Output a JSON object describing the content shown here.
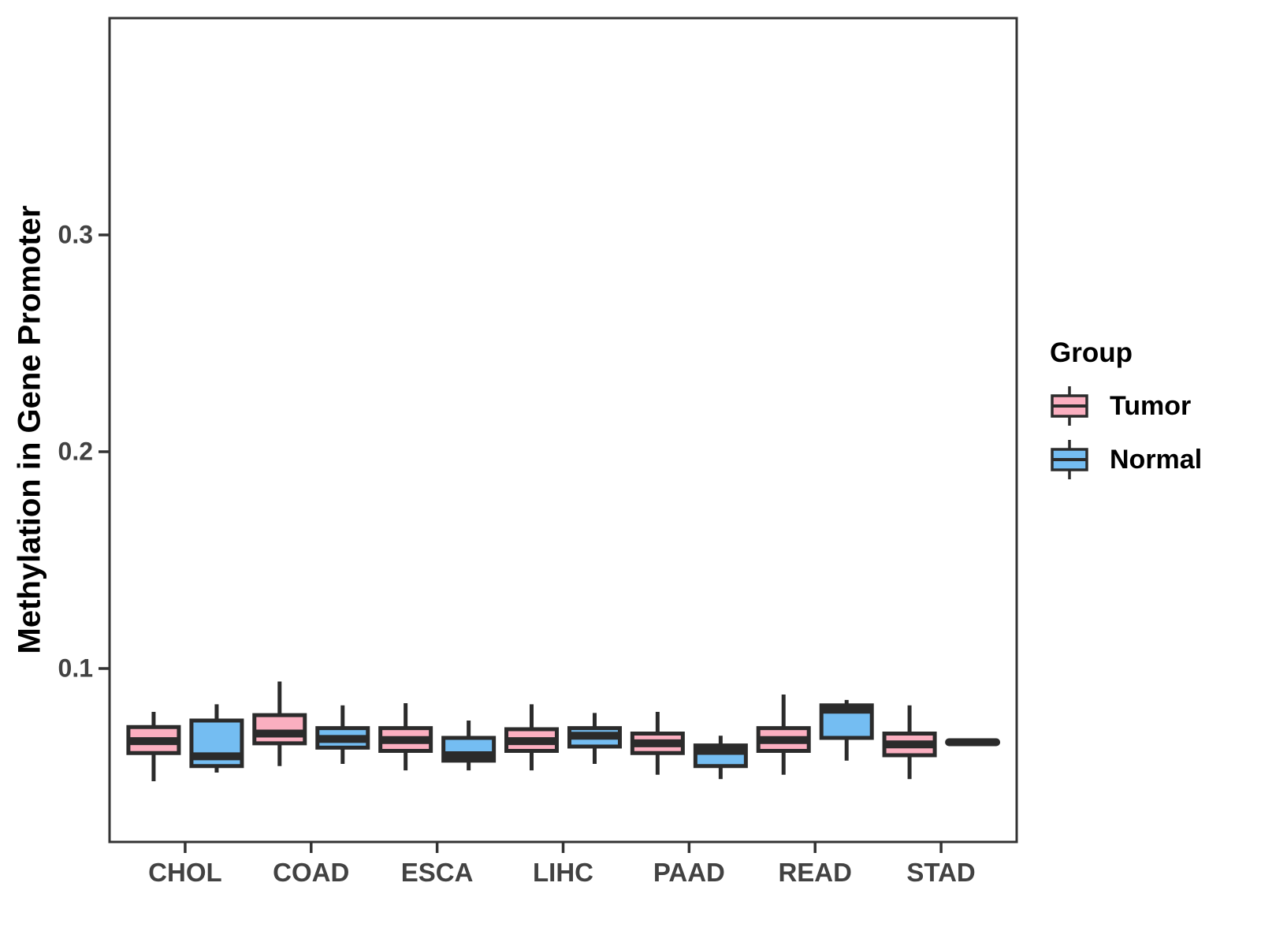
{
  "chart_data": {
    "type": "boxplot",
    "title": "",
    "xlabel": "",
    "ylabel": "Methylation in Gene Promoter",
    "legend_title": "Group",
    "legend_position": "right",
    "grid": false,
    "ylim": [
      0.02,
      0.4
    ],
    "yticks": [
      0.1,
      0.2,
      0.3
    ],
    "ytick_labels": [
      "0.1",
      "0.2",
      "0.3"
    ],
    "categories": [
      "CHOL",
      "COAD",
      "ESCA",
      "LIHC",
      "PAAD",
      "READ",
      "STAD"
    ],
    "series": [
      {
        "name": "Tumor",
        "color": "#FBAFC0",
        "boxes": [
          {
            "min": 0.048,
            "q1": 0.061,
            "median": 0.0665,
            "q3": 0.073,
            "max": 0.08
          },
          {
            "min": 0.055,
            "q1": 0.0655,
            "median": 0.07,
            "q3": 0.0785,
            "max": 0.094
          },
          {
            "min": 0.053,
            "q1": 0.062,
            "median": 0.067,
            "q3": 0.0725,
            "max": 0.084
          },
          {
            "min": 0.053,
            "q1": 0.062,
            "median": 0.0665,
            "q3": 0.072,
            "max": 0.0835
          },
          {
            "min": 0.051,
            "q1": 0.061,
            "median": 0.0655,
            "q3": 0.07,
            "max": 0.08
          },
          {
            "min": 0.051,
            "q1": 0.062,
            "median": 0.067,
            "q3": 0.0725,
            "max": 0.088
          },
          {
            "min": 0.049,
            "q1": 0.06,
            "median": 0.065,
            "q3": 0.07,
            "max": 0.083
          }
        ]
      },
      {
        "name": "Normal",
        "color": "#74BDF2",
        "boxes": [
          {
            "min": 0.052,
            "q1": 0.055,
            "median": 0.0595,
            "q3": 0.076,
            "max": 0.0835
          },
          {
            "min": 0.056,
            "q1": 0.0635,
            "median": 0.0675,
            "q3": 0.0725,
            "max": 0.083
          },
          {
            "min": 0.053,
            "q1": 0.0575,
            "median": 0.06,
            "q3": 0.068,
            "max": 0.076
          },
          {
            "min": 0.056,
            "q1": 0.064,
            "median": 0.069,
            "q3": 0.0725,
            "max": 0.0795
          },
          {
            "min": 0.049,
            "q1": 0.055,
            "median": 0.062,
            "q3": 0.0645,
            "max": 0.069
          },
          {
            "min": 0.0575,
            "q1": 0.068,
            "median": 0.081,
            "q3": 0.083,
            "max": 0.0855
          },
          {
            "min": 0.066,
            "q1": 0.066,
            "median": 0.066,
            "q3": 0.066,
            "max": 0.066
          }
        ]
      }
    ],
    "colors": {
      "box_outline": "#2B2B2B",
      "axis": "#333333",
      "tick_text": "#424242",
      "title_text": "#000000",
      "background": "#FFFFFF"
    }
  }
}
